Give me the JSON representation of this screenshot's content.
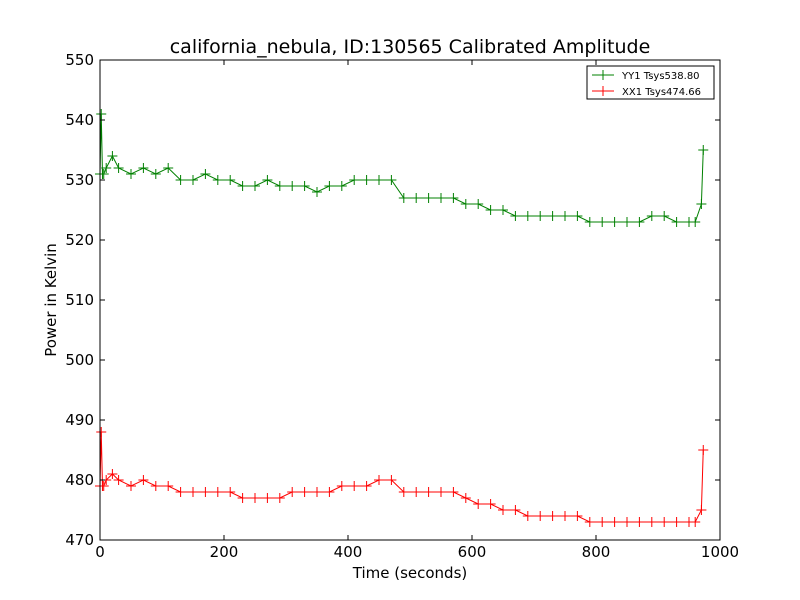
{
  "chart_data": {
    "type": "line",
    "title": "california_nebula, ID:130565 Calibrated Amplitude",
    "xlabel": "Time (seconds)",
    "ylabel": "Power in Kelvin",
    "xlim": [
      0,
      1000
    ],
    "ylim": [
      470,
      550
    ],
    "xticks": [
      "0",
      "200",
      "400",
      "600",
      "800",
      "1000"
    ],
    "yticks": [
      "470",
      "480",
      "490",
      "500",
      "510",
      "520",
      "530",
      "540",
      "550"
    ],
    "grid": false,
    "legend_position": "top-right",
    "marker": "plus",
    "series": [
      {
        "name": "YY1 Tsys538.80",
        "color": "#008000",
        "x": [
          0,
          2,
          4,
          6,
          10,
          20,
          30,
          50,
          70,
          90,
          110,
          130,
          150,
          170,
          190,
          210,
          230,
          250,
          270,
          290,
          310,
          330,
          350,
          370,
          390,
          410,
          430,
          450,
          470,
          490,
          510,
          530,
          550,
          570,
          590,
          610,
          630,
          650,
          670,
          690,
          710,
          730,
          750,
          770,
          790,
          810,
          830,
          850,
          870,
          890,
          910,
          930,
          950,
          960,
          970,
          973
        ],
        "y": [
          531,
          541,
          531,
          531,
          532,
          534,
          532,
          531,
          532,
          531,
          532,
          530,
          530,
          531,
          530,
          530,
          529,
          529,
          530,
          529,
          529,
          529,
          528,
          529,
          529,
          530,
          530,
          530,
          530,
          527,
          527,
          527,
          527,
          527,
          526,
          526,
          525,
          525,
          524,
          524,
          524,
          524,
          524,
          524,
          523,
          523,
          523,
          523,
          523,
          524,
          524,
          523,
          523,
          523,
          526,
          535
        ]
      },
      {
        "name": "XX1 Tsys474.66",
        "color": "#ff0000",
        "x": [
          0,
          2,
          4,
          6,
          10,
          20,
          30,
          50,
          70,
          90,
          110,
          130,
          150,
          170,
          190,
          210,
          230,
          250,
          270,
          290,
          310,
          330,
          350,
          370,
          390,
          410,
          430,
          450,
          470,
          490,
          510,
          530,
          550,
          570,
          590,
          610,
          630,
          650,
          670,
          690,
          710,
          730,
          750,
          770,
          790,
          810,
          830,
          850,
          870,
          890,
          910,
          930,
          950,
          960,
          970,
          973
        ],
        "y": [
          479,
          488,
          479,
          479,
          480,
          481,
          480,
          479,
          480,
          479,
          479,
          478,
          478,
          478,
          478,
          478,
          477,
          477,
          477,
          477,
          478,
          478,
          478,
          478,
          479,
          479,
          479,
          480,
          480,
          478,
          478,
          478,
          478,
          478,
          477,
          476,
          476,
          475,
          475,
          474,
          474,
          474,
          474,
          474,
          473,
          473,
          473,
          473,
          473,
          473,
          473,
          473,
          473,
          473,
          475,
          485
        ]
      }
    ]
  }
}
